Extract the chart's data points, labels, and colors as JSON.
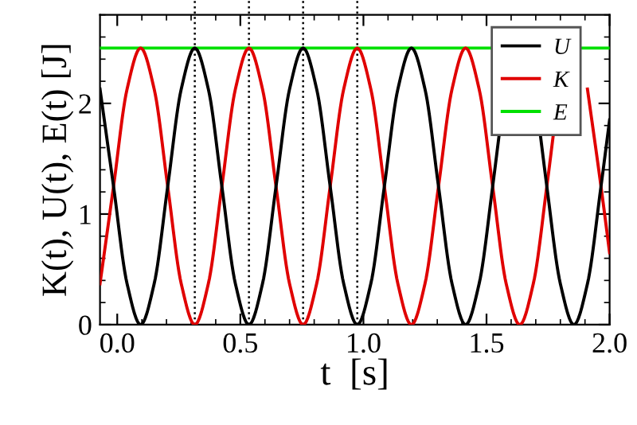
{
  "chart_data": {
    "type": "line",
    "xlabel": "t  [s]",
    "ylabel": "K(t), U(t), E(t) [J]",
    "series": [
      {
        "name": "U",
        "color": "#000000",
        "x": [
          -0.07,
          -0.015,
          0.04,
          0.095,
          0.15,
          0.205,
          0.26,
          0.315,
          0.37,
          0.425,
          0.48,
          0.535,
          0.59,
          0.645,
          0.7,
          0.755,
          0.81,
          0.865,
          0.92,
          0.975,
          1.03,
          1.085,
          1.14,
          1.195,
          1.25,
          1.305,
          1.36,
          1.415,
          1.47,
          1.525,
          1.551,
          1.58,
          1.635,
          1.69,
          1.719,
          1.745,
          1.8,
          1.855,
          1.91,
          1.965,
          2.0
        ],
        "values": [
          2.13,
          1.25,
          0.37,
          0,
          0.37,
          1.25,
          2.13,
          2.5,
          2.13,
          1.25,
          0.37,
          0,
          0.37,
          1.25,
          2.13,
          2.5,
          2.13,
          1.25,
          0.37,
          0,
          0.37,
          1.25,
          2.13,
          2.5,
          2.13,
          1.25,
          0.37,
          0,
          0.37,
          1.25,
          1.71,
          null,
          null,
          null,
          1.71,
          1.25,
          0.37,
          0,
          0.37,
          1.25,
          1.85
        ]
      },
      {
        "name": "K",
        "color": "#e00000",
        "x": [
          -0.07,
          -0.015,
          0.04,
          0.095,
          0.15,
          0.205,
          0.26,
          0.315,
          0.37,
          0.425,
          0.48,
          0.535,
          0.59,
          0.645,
          0.7,
          0.755,
          0.81,
          0.865,
          0.92,
          0.975,
          1.03,
          1.085,
          1.14,
          1.195,
          1.25,
          1.305,
          1.36,
          1.415,
          1.47,
          1.525,
          1.58,
          1.635,
          1.69,
          1.745,
          1.771,
          1.8,
          1.855,
          1.91,
          1.965,
          2.0
        ],
        "values": [
          0.37,
          1.25,
          2.13,
          2.5,
          2.13,
          1.25,
          0.37,
          0,
          0.37,
          1.25,
          2.13,
          2.5,
          2.13,
          1.25,
          0.37,
          0,
          0.37,
          1.25,
          2.13,
          2.5,
          2.13,
          1.25,
          0.37,
          0,
          0.37,
          1.25,
          2.13,
          2.5,
          2.13,
          1.25,
          0.37,
          0,
          0.37,
          1.25,
          1.71,
          null,
          null,
          2.13,
          1.25,
          0.65
        ]
      },
      {
        "name": "E",
        "color": "#00e000",
        "x": [
          -0.07,
          2.0
        ],
        "values": [
          2.5,
          2.5
        ]
      }
    ],
    "ref_lines": [
      {
        "axis": "x",
        "value": 0.315,
        "color": "#000000",
        "line_style": "dotted"
      },
      {
        "axis": "x",
        "value": 0.535,
        "color": "#000000",
        "line_style": "dotted"
      },
      {
        "axis": "x",
        "value": 0.755,
        "color": "#000000",
        "line_style": "dotted"
      },
      {
        "axis": "x",
        "value": 0.975,
        "color": "#000000",
        "line_style": "dotted"
      }
    ],
    "xlim": [
      -0.07,
      2.0
    ],
    "xticks": [
      {
        "value": 0,
        "label": "0.0"
      },
      0.5,
      {
        "value": 1,
        "label": "1.0"
      },
      1.5,
      {
        "value": 2,
        "label": "2.0"
      }
    ],
    "ylim": [
      0,
      2.8
    ],
    "yticks": [
      0,
      1,
      2
    ],
    "grid": false,
    "legend": "top right",
    "marker": "none",
    "line_style": "solid"
  }
}
